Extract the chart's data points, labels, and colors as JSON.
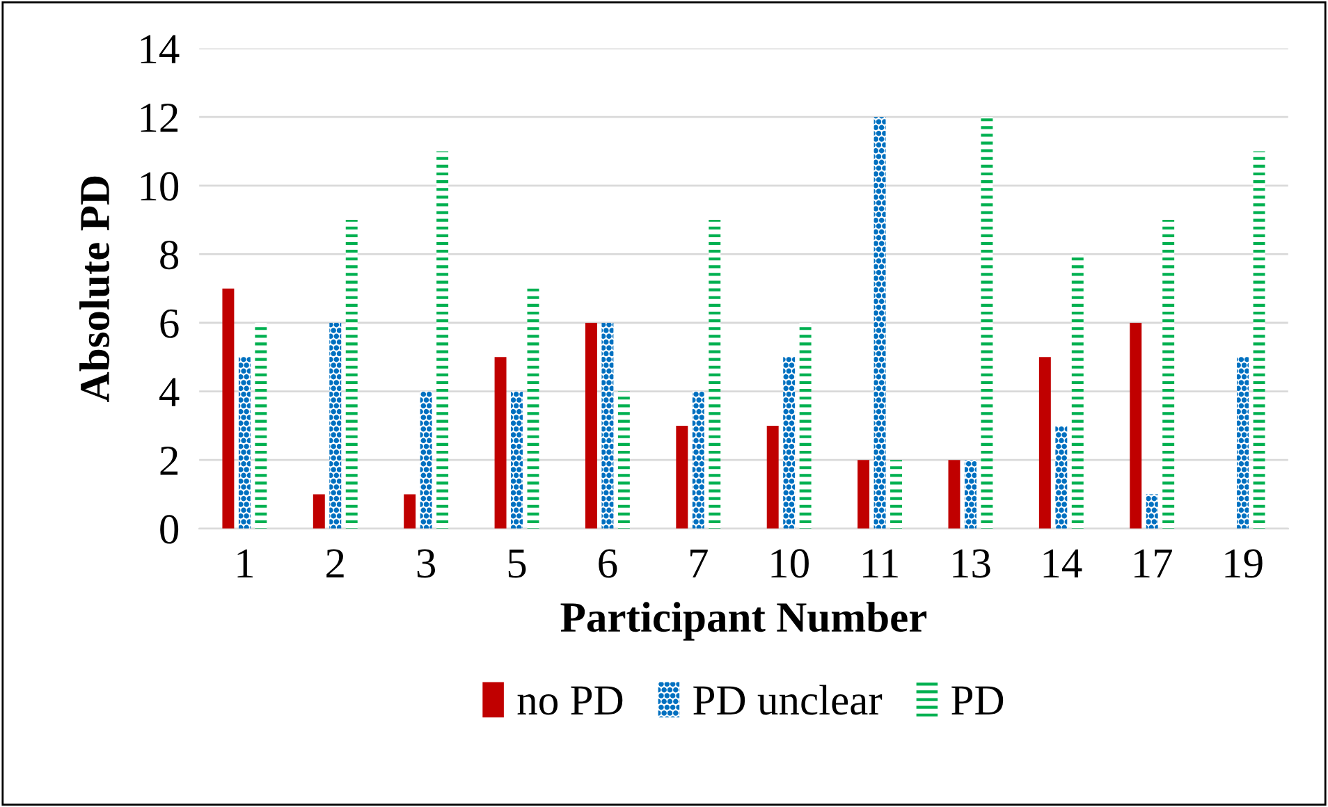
{
  "chart_data": {
    "type": "bar",
    "xlabel": "Participant Number",
    "ylabel": "Absolute PD",
    "categories": [
      "1",
      "2",
      "3",
      "5",
      "6",
      "7",
      "10",
      "11",
      "13",
      "14",
      "17",
      "19"
    ],
    "series": [
      {
        "name": "no PD",
        "color": "#c00000",
        "values": [
          7,
          1,
          1,
          5,
          6,
          3,
          3,
          2,
          2,
          5,
          6,
          0
        ]
      },
      {
        "name": "PD unclear",
        "color": "#0070c0",
        "values": [
          5,
          6,
          4,
          4,
          6,
          4,
          5,
          12,
          2,
          3,
          1,
          5
        ]
      },
      {
        "name": "PD",
        "color": "#00b050",
        "values": [
          6,
          9,
          11,
          7,
          4,
          9,
          6,
          2,
          12,
          8,
          9,
          11
        ]
      }
    ],
    "ylim": [
      0,
      14
    ],
    "yticks": [
      0,
      2,
      4,
      6,
      8,
      10,
      12,
      14
    ],
    "grid": "y",
    "legend": "bottom"
  }
}
